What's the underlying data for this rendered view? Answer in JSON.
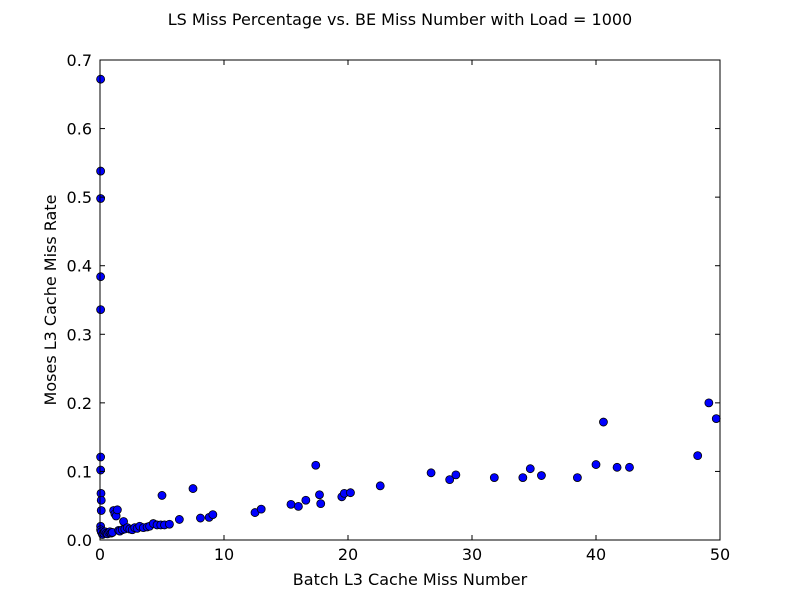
{
  "chart_data": {
    "type": "scatter",
    "title": "LS Miss Percentage vs. BE Miss Number with Load = 1000",
    "xlabel": "Batch L3 Cache Miss Number",
    "ylabel": "Moses L3 Cache Miss Rate",
    "xlim": [
      0,
      50
    ],
    "ylim": [
      0,
      0.7
    ],
    "xticks": [
      0,
      10,
      20,
      30,
      40,
      50
    ],
    "xtick_labels": [
      "0",
      "10",
      "20",
      "30",
      "40",
      "50"
    ],
    "yticks": [
      0.0,
      0.1,
      0.2,
      0.3,
      0.4,
      0.5,
      0.6,
      0.7
    ],
    "ytick_labels": [
      "0.0",
      "0.1",
      "0.2",
      "0.3",
      "0.4",
      "0.5",
      "0.6",
      "0.7"
    ],
    "grid": false,
    "marker_color": "#0000ff",
    "marker_edge_color": "#000000",
    "series": [
      {
        "points": [
          [
            0.05,
            0.672
          ],
          [
            0.05,
            0.538
          ],
          [
            0.05,
            0.498
          ],
          [
            0.05,
            0.384
          ],
          [
            0.05,
            0.336
          ],
          [
            0.05,
            0.121
          ],
          [
            0.05,
            0.102
          ],
          [
            0.08,
            0.068
          ],
          [
            0.1,
            0.058
          ],
          [
            0.1,
            0.043
          ],
          [
            0.05,
            0.02
          ],
          [
            0.05,
            0.015
          ],
          [
            0.1,
            0.012
          ],
          [
            0.2,
            0.008
          ],
          [
            0.3,
            0.01
          ],
          [
            0.4,
            0.012
          ],
          [
            0.5,
            0.01
          ],
          [
            0.6,
            0.009
          ],
          [
            0.7,
            0.011
          ],
          [
            0.8,
            0.012
          ],
          [
            0.9,
            0.01
          ],
          [
            1.0,
            0.011
          ],
          [
            1.1,
            0.043
          ],
          [
            1.2,
            0.038
          ],
          [
            1.3,
            0.035
          ],
          [
            1.4,
            0.044
          ],
          [
            1.5,
            0.014
          ],
          [
            1.6,
            0.013
          ],
          [
            1.8,
            0.015
          ],
          [
            1.9,
            0.027
          ],
          [
            2.0,
            0.016
          ],
          [
            2.2,
            0.018
          ],
          [
            2.4,
            0.016
          ],
          [
            2.6,
            0.015
          ],
          [
            2.8,
            0.018
          ],
          [
            3.0,
            0.017
          ],
          [
            3.2,
            0.02
          ],
          [
            3.5,
            0.018
          ],
          [
            3.8,
            0.019
          ],
          [
            4.0,
            0.02
          ],
          [
            4.3,
            0.024
          ],
          [
            4.6,
            0.022
          ],
          [
            5.0,
            0.065
          ],
          [
            4.9,
            0.022
          ],
          [
            5.2,
            0.022
          ],
          [
            5.6,
            0.023
          ],
          [
            6.4,
            0.03
          ],
          [
            7.5,
            0.075
          ],
          [
            8.1,
            0.032
          ],
          [
            8.8,
            0.033
          ],
          [
            9.1,
            0.037
          ],
          [
            12.5,
            0.04
          ],
          [
            13.0,
            0.045
          ],
          [
            15.4,
            0.052
          ],
          [
            16.0,
            0.049
          ],
          [
            16.6,
            0.058
          ],
          [
            17.4,
            0.109
          ],
          [
            17.7,
            0.066
          ],
          [
            17.8,
            0.053
          ],
          [
            19.5,
            0.063
          ],
          [
            19.7,
            0.068
          ],
          [
            20.2,
            0.069
          ],
          [
            22.6,
            0.079
          ],
          [
            26.7,
            0.098
          ],
          [
            28.2,
            0.088
          ],
          [
            28.7,
            0.095
          ],
          [
            31.8,
            0.091
          ],
          [
            34.1,
            0.091
          ],
          [
            34.7,
            0.104
          ],
          [
            35.6,
            0.094
          ],
          [
            38.5,
            0.091
          ],
          [
            40.0,
            0.11
          ],
          [
            40.6,
            0.172
          ],
          [
            41.7,
            0.106
          ],
          [
            42.7,
            0.106
          ],
          [
            48.2,
            0.123
          ],
          [
            49.1,
            0.2
          ],
          [
            49.7,
            0.177
          ]
        ]
      }
    ]
  }
}
